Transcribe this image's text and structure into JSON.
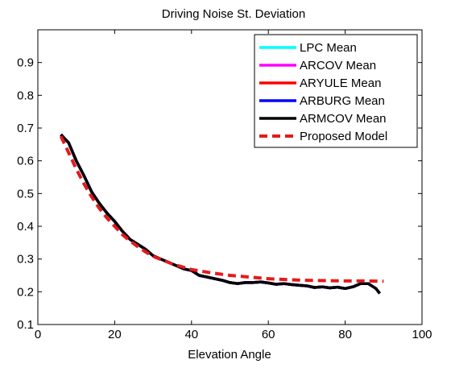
{
  "chart_data": {
    "type": "line",
    "title": "Driving Noise St. Deviation",
    "xlabel": "Elevation Angle",
    "ylabel": "",
    "xlim": [
      0,
      100
    ],
    "ylim": [
      0.1,
      1.0
    ],
    "xticks": [
      0,
      20,
      40,
      60,
      80,
      100
    ],
    "yticks": [
      0.1,
      0.2,
      0.3,
      0.4,
      0.5,
      0.6,
      0.7,
      0.8,
      0.9
    ],
    "xtick_labels": [
      "0",
      "20",
      "40",
      "60",
      "80",
      "100"
    ],
    "ytick_labels": [
      "0.1",
      "0.2",
      "0.3",
      "0.4",
      "0.5",
      "0.6",
      "0.7",
      "0.8",
      "0.9"
    ],
    "grid": false,
    "legend_position": "top-right",
    "series": [
      {
        "name": "LPC Mean",
        "color": "#00ffff",
        "style": "solid",
        "x": [
          6,
          8,
          10,
          12,
          14,
          16,
          18,
          20,
          22,
          24,
          26,
          28,
          30,
          32,
          34,
          36,
          38,
          40,
          42,
          44,
          46,
          48,
          50,
          52,
          54,
          56,
          58,
          60,
          62,
          64,
          66,
          68,
          70,
          72,
          74,
          76,
          78,
          80,
          82,
          84,
          86,
          88,
          89
        ],
        "y": [
          0.68,
          0.655,
          0.6,
          0.555,
          0.505,
          0.47,
          0.44,
          0.415,
          0.385,
          0.36,
          0.345,
          0.33,
          0.31,
          0.3,
          0.29,
          0.28,
          0.27,
          0.265,
          0.25,
          0.245,
          0.24,
          0.235,
          0.228,
          0.225,
          0.228,
          0.228,
          0.23,
          0.227,
          0.223,
          0.225,
          0.222,
          0.22,
          0.218,
          0.213,
          0.215,
          0.212,
          0.214,
          0.21,
          0.215,
          0.225,
          0.225,
          0.21,
          0.195
        ]
      },
      {
        "name": "ARCOV Mean",
        "color": "#ff00ff",
        "style": "solid",
        "x": [
          6,
          8,
          10,
          12,
          14,
          16,
          18,
          20,
          22,
          24,
          26,
          28,
          30,
          32,
          34,
          36,
          38,
          40,
          42,
          44,
          46,
          48,
          50,
          52,
          54,
          56,
          58,
          60,
          62,
          64,
          66,
          68,
          70,
          72,
          74,
          76,
          78,
          80,
          82,
          84,
          86,
          88,
          89
        ],
        "y": [
          0.68,
          0.655,
          0.6,
          0.555,
          0.505,
          0.47,
          0.44,
          0.415,
          0.385,
          0.36,
          0.345,
          0.33,
          0.31,
          0.3,
          0.29,
          0.28,
          0.27,
          0.265,
          0.25,
          0.245,
          0.24,
          0.235,
          0.228,
          0.225,
          0.228,
          0.228,
          0.23,
          0.227,
          0.223,
          0.225,
          0.222,
          0.22,
          0.218,
          0.213,
          0.215,
          0.212,
          0.214,
          0.21,
          0.215,
          0.225,
          0.225,
          0.21,
          0.195
        ]
      },
      {
        "name": "ARYULE Mean",
        "color": "#ff0000",
        "style": "solid",
        "x": [
          6,
          8,
          10,
          12,
          14,
          16,
          18,
          20,
          22,
          24,
          26,
          28,
          30,
          32,
          34,
          36,
          38,
          40,
          42,
          44,
          46,
          48,
          50,
          52,
          54,
          56,
          58,
          60,
          62,
          64,
          66,
          68,
          70,
          72,
          74,
          76,
          78,
          80,
          82,
          84,
          86,
          88,
          89
        ],
        "y": [
          0.68,
          0.655,
          0.6,
          0.555,
          0.505,
          0.47,
          0.44,
          0.415,
          0.385,
          0.36,
          0.345,
          0.33,
          0.31,
          0.3,
          0.29,
          0.28,
          0.27,
          0.265,
          0.25,
          0.245,
          0.24,
          0.235,
          0.228,
          0.225,
          0.228,
          0.228,
          0.23,
          0.227,
          0.223,
          0.225,
          0.222,
          0.22,
          0.218,
          0.213,
          0.215,
          0.212,
          0.214,
          0.21,
          0.215,
          0.225,
          0.225,
          0.21,
          0.195
        ]
      },
      {
        "name": "ARBURG Mean",
        "color": "#0000ff",
        "style": "solid",
        "x": [
          6,
          8,
          10,
          12,
          14,
          16,
          18,
          20,
          22,
          24,
          26,
          28,
          30,
          32,
          34,
          36,
          38,
          40,
          42,
          44,
          46,
          48,
          50,
          52,
          54,
          56,
          58,
          60,
          62,
          64,
          66,
          68,
          70,
          72,
          74,
          76,
          78,
          80,
          82,
          84,
          86,
          88,
          89
        ],
        "y": [
          0.68,
          0.655,
          0.6,
          0.555,
          0.505,
          0.47,
          0.44,
          0.415,
          0.385,
          0.36,
          0.345,
          0.33,
          0.31,
          0.3,
          0.29,
          0.28,
          0.27,
          0.265,
          0.25,
          0.245,
          0.24,
          0.235,
          0.228,
          0.225,
          0.228,
          0.228,
          0.23,
          0.227,
          0.223,
          0.225,
          0.222,
          0.22,
          0.218,
          0.213,
          0.215,
          0.212,
          0.214,
          0.21,
          0.215,
          0.225,
          0.225,
          0.21,
          0.195
        ]
      },
      {
        "name": "ARMCOV Mean",
        "color": "#000000",
        "style": "solid",
        "x": [
          6,
          8,
          10,
          12,
          14,
          16,
          18,
          20,
          22,
          24,
          26,
          28,
          30,
          32,
          34,
          36,
          38,
          40,
          42,
          44,
          46,
          48,
          50,
          52,
          54,
          56,
          58,
          60,
          62,
          64,
          66,
          68,
          70,
          72,
          74,
          76,
          78,
          80,
          82,
          84,
          86,
          88,
          89
        ],
        "y": [
          0.68,
          0.655,
          0.6,
          0.555,
          0.505,
          0.47,
          0.44,
          0.415,
          0.385,
          0.36,
          0.345,
          0.33,
          0.31,
          0.3,
          0.29,
          0.28,
          0.27,
          0.265,
          0.25,
          0.245,
          0.24,
          0.235,
          0.228,
          0.225,
          0.228,
          0.228,
          0.23,
          0.227,
          0.223,
          0.225,
          0.222,
          0.22,
          0.218,
          0.213,
          0.215,
          0.212,
          0.214,
          0.21,
          0.215,
          0.225,
          0.225,
          0.21,
          0.195
        ]
      },
      {
        "name": "Proposed Model",
        "color": "#e41a1c",
        "style": "dashed",
        "x": [
          6,
          8,
          10,
          12,
          14,
          16,
          18,
          20,
          22,
          24,
          26,
          28,
          30,
          35,
          40,
          45,
          50,
          55,
          60,
          65,
          70,
          75,
          80,
          85,
          90
        ],
        "y": [
          0.675,
          0.625,
          0.575,
          0.53,
          0.49,
          0.455,
          0.425,
          0.4,
          0.375,
          0.355,
          0.338,
          0.322,
          0.308,
          0.285,
          0.268,
          0.258,
          0.25,
          0.245,
          0.24,
          0.237,
          0.235,
          0.234,
          0.233,
          0.233,
          0.232
        ]
      }
    ]
  }
}
